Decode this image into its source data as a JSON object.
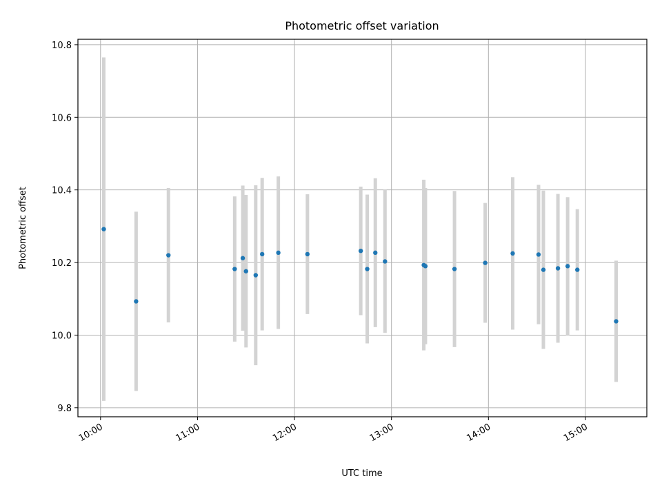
{
  "chart_data": {
    "type": "scatter",
    "title": "Photometric offset variation",
    "xlabel": "UTC time",
    "ylabel": "Photometric offset",
    "x_type": "time",
    "xlim": [
      "09:46",
      "15:38"
    ],
    "ylim": [
      9.775,
      10.815
    ],
    "grid": true,
    "x_ticks": [
      "10:00",
      "11:00",
      "12:00",
      "13:00",
      "14:00",
      "15:00"
    ],
    "y_ticks": [
      "9.8",
      "10.0",
      "10.2",
      "10.4",
      "10.6",
      "10.8"
    ],
    "colors": {
      "point": "#1f77b4",
      "errorbar": "#d3d3d3",
      "grid": "#b0b0b0"
    },
    "series": [
      {
        "points": [
          {
            "x": "10:02",
            "y": 10.292,
            "err": 0.473
          },
          {
            "x": "10:22",
            "y": 10.093,
            "err": 0.247
          },
          {
            "x": "10:42",
            "y": 10.22,
            "err": 0.185
          },
          {
            "x": "11:23",
            "y": 10.182,
            "err": 0.2
          },
          {
            "x": "11:28",
            "y": 10.212,
            "err": 0.2
          },
          {
            "x": "11:30",
            "y": 10.176,
            "err": 0.21
          },
          {
            "x": "11:36",
            "y": 10.165,
            "err": 0.248
          },
          {
            "x": "11:40",
            "y": 10.223,
            "err": 0.21
          },
          {
            "x": "11:50",
            "y": 10.227,
            "err": 0.21
          },
          {
            "x": "12:08",
            "y": 10.223,
            "err": 0.165
          },
          {
            "x": "12:41",
            "y": 10.232,
            "err": 0.177
          },
          {
            "x": "12:45",
            "y": 10.182,
            "err": 0.205
          },
          {
            "x": "12:50",
            "y": 10.227,
            "err": 0.205
          },
          {
            "x": "12:56",
            "y": 10.203,
            "err": 0.197
          },
          {
            "x": "13:20",
            "y": 10.193,
            "err": 0.235
          },
          {
            "x": "13:21",
            "y": 10.19,
            "err": 0.215
          },
          {
            "x": "13:39",
            "y": 10.182,
            "err": 0.215
          },
          {
            "x": "13:58",
            "y": 10.199,
            "err": 0.165
          },
          {
            "x": "14:15",
            "y": 10.225,
            "err": 0.21
          },
          {
            "x": "14:31",
            "y": 10.222,
            "err": 0.192
          },
          {
            "x": "14:34",
            "y": 10.18,
            "err": 0.218
          },
          {
            "x": "14:43",
            "y": 10.184,
            "err": 0.205
          },
          {
            "x": "14:49",
            "y": 10.19,
            "err": 0.19
          },
          {
            "x": "14:55",
            "y": 10.18,
            "err": 0.167
          },
          {
            "x": "15:19",
            "y": 10.038,
            "err": 0.167
          }
        ]
      }
    ]
  }
}
